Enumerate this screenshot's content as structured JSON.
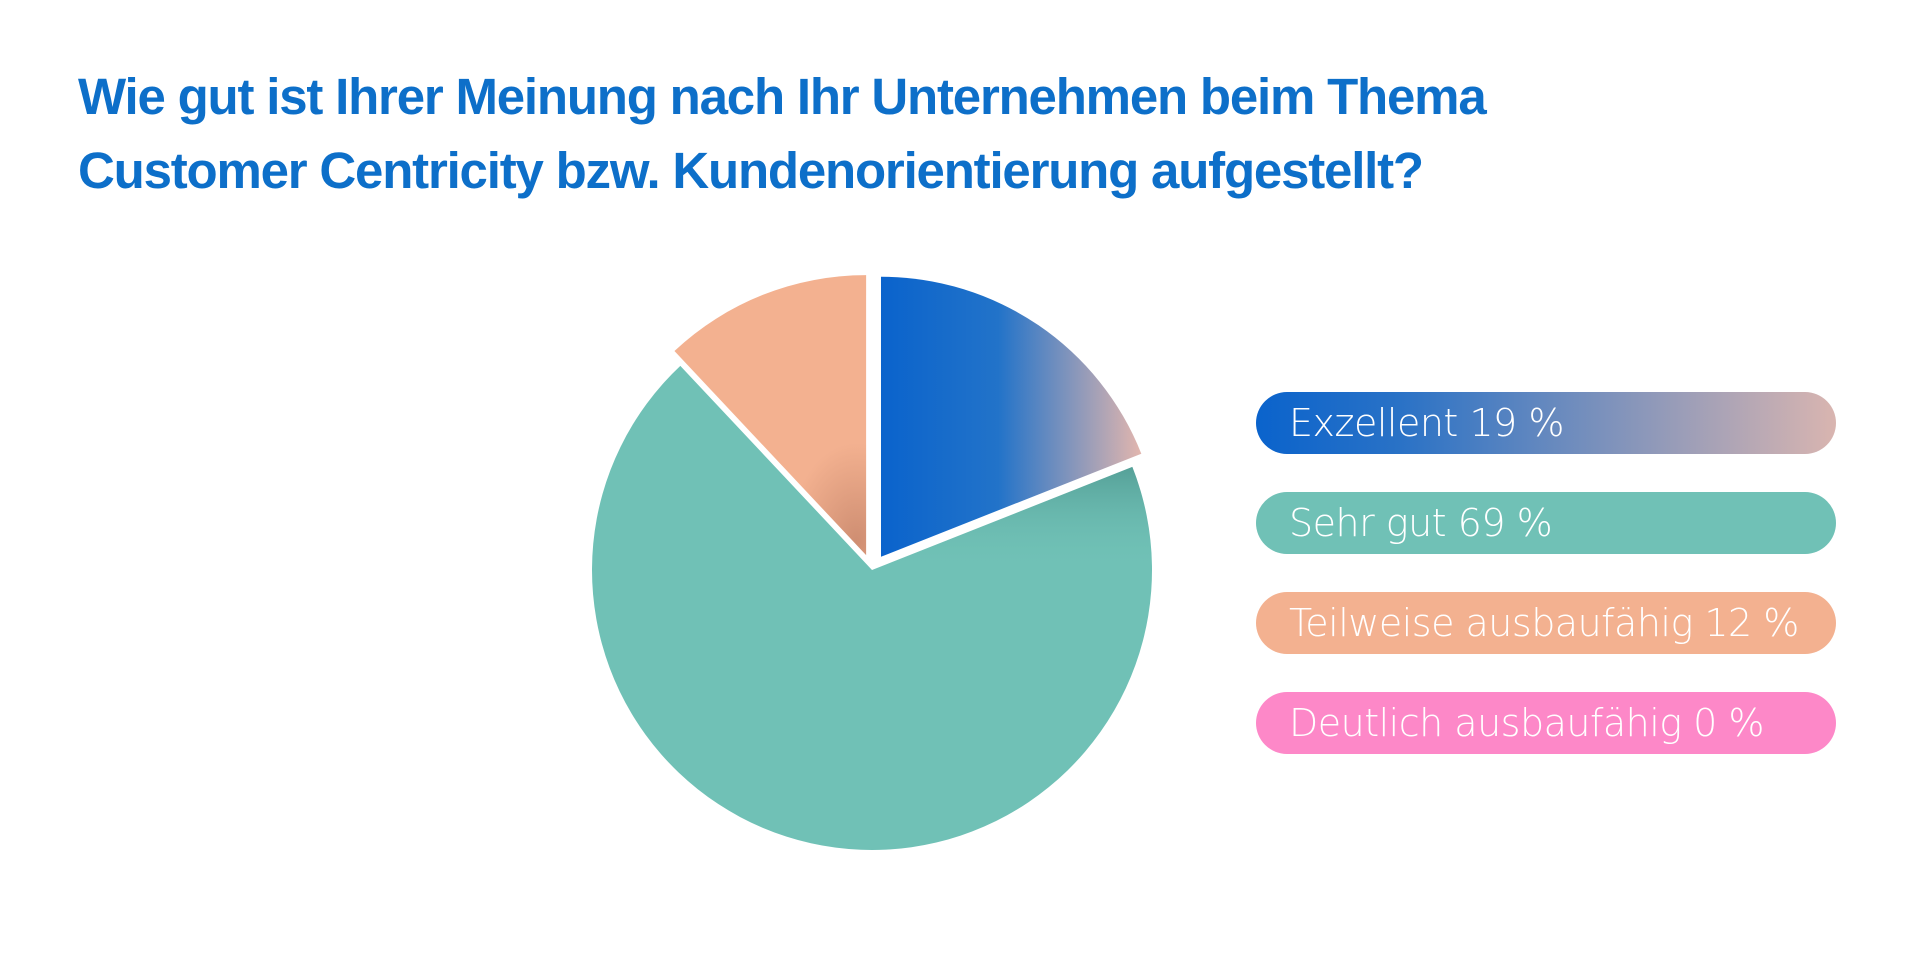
{
  "chart_data": {
    "type": "pie",
    "title_lines": [
      "Wie gut ist Ihrer Meinung nach Ihr Unternehmen beim Thema",
      "Customer Centricity bzw. Kundenorientierung aufgestellt?"
    ],
    "slices": [
      {
        "label": "Exzellent",
        "value": 19,
        "text": "Exzellent 19 %",
        "color": "#0a63cc",
        "color_end": "#d9b5b0",
        "exploded": true
      },
      {
        "label": "Sehr gut",
        "value": 69,
        "text": "Sehr gut 69 %",
        "color": "#70c1b6",
        "exploded": false
      },
      {
        "label": "Teilweise ausbaufähig",
        "value": 12,
        "text": "Teilweise ausbaufähig 12 %",
        "color": "#f3b190",
        "exploded": true
      },
      {
        "label": "Deutlich ausbaufähig",
        "value": 0,
        "text": "Deutlich ausbaufähig 0 %",
        "color": "#fd88c8",
        "exploded": false
      }
    ],
    "legend_position": "right"
  }
}
